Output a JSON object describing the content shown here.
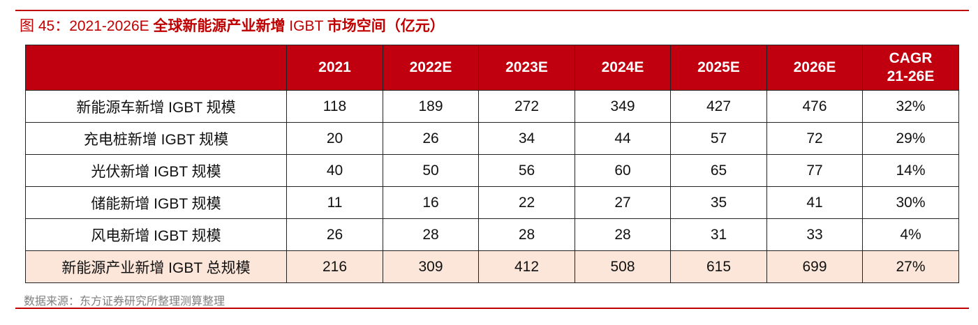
{
  "caption": {
    "prefix": "图 45：2021-2026E ",
    "bold_part1": "全球新能源产业新增",
    "mid": " IGBT ",
    "bold_part2": "市场空间（亿元）"
  },
  "table": {
    "header": [
      "",
      "2021",
      "2022E",
      "2023E",
      "2024E",
      "2025E",
      "2026E",
      "CAGR 21-26E"
    ],
    "cagr_line1": "CAGR",
    "cagr_line2": "21-26E",
    "rows": [
      [
        "新能源车新增 IGBT 规模",
        "118",
        "189",
        "272",
        "349",
        "427",
        "476",
        "32%"
      ],
      [
        "充电桩新增 IGBT 规模",
        "20",
        "26",
        "34",
        "44",
        "57",
        "72",
        "29%"
      ],
      [
        "光伏新增 IGBT 规模",
        "40",
        "50",
        "56",
        "60",
        "65",
        "77",
        "14%"
      ],
      [
        "储能新增 IGBT 规模",
        "11",
        "16",
        "22",
        "27",
        "35",
        "41",
        "30%"
      ],
      [
        "风电新增 IGBT 规模",
        "26",
        "28",
        "28",
        "28",
        "31",
        "33",
        "4%"
      ],
      [
        "新能源产业新增 IGBT 总规模",
        "216",
        "309",
        "412",
        "508",
        "615",
        "699",
        "27%"
      ]
    ]
  },
  "source": "数据来源：东方证券研究所整理测算整理",
  "colors": {
    "accent_red": "#c00000",
    "header_bg": "#c0000e",
    "total_row_bg": "#fbe6d9"
  }
}
